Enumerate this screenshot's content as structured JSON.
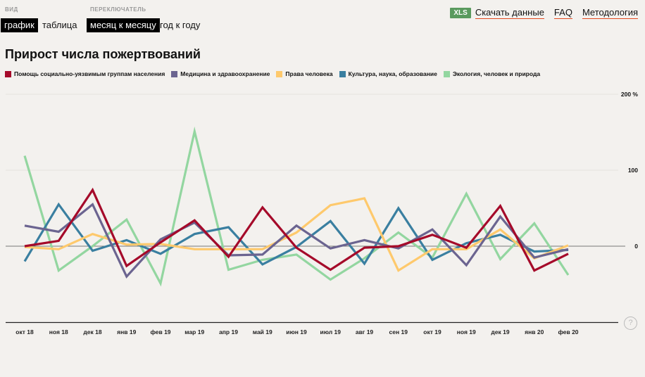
{
  "controls": {
    "view_label": "ВИД",
    "view_options": [
      "график",
      "таблица"
    ],
    "view_selected": 0,
    "switch_label": "ПЕРЕКЛЮЧАТЕЛЬ",
    "switch_options": [
      "месяц к месяцу",
      "год к году"
    ],
    "switch_selected": 0
  },
  "toplinks": {
    "xls_badge": "XLS",
    "download": "Скачать данные",
    "faq": "FAQ",
    "methodology": "Методология"
  },
  "help_icon": "?",
  "colors": {
    "background": "#f3f1ee",
    "link_underline": "#e2481f",
    "xls_badge": "#5a9a5e"
  },
  "chart_data": {
    "type": "line",
    "title": "Прирост числа пожертвований",
    "xlabel": "",
    "ylabel": "",
    "ylim": [
      -95,
      200
    ],
    "yticks": [
      {
        "value": 200,
        "label": "200 %"
      },
      {
        "value": 100,
        "label": "100"
      },
      {
        "value": 0,
        "label": "0"
      }
    ],
    "grid": true,
    "legend_position": "top-left",
    "categories": [
      "окт 18",
      "ноя 18",
      "дек 18",
      "янв 19",
      "фев 19",
      "мар 19",
      "апр 19",
      "май 19",
      "июн 19",
      "июл 19",
      "авг 19",
      "сен 19",
      "окт 19",
      "ноя 19",
      "дек 19",
      "янв 20",
      "фев 20"
    ],
    "series": [
      {
        "name": "Экология, человек и природа",
        "color": "#93d6a0",
        "values": [
          119,
          -32,
          0,
          35,
          -49,
          151,
          -31,
          -18,
          -11,
          -44,
          -16,
          18,
          -15,
          69,
          -17,
          30,
          -38
        ]
      },
      {
        "name": "Культура, наука, образование",
        "color": "#3a7fa0",
        "values": [
          -20,
          55,
          -6,
          8,
          -10,
          16,
          25,
          -24,
          -1,
          33,
          -23,
          50,
          -18,
          4,
          15,
          -7,
          -5
        ]
      },
      {
        "name": "Права человека",
        "color": "#fec96c",
        "values": [
          -1,
          -4,
          16,
          2,
          3,
          -4,
          -4,
          -4,
          18,
          54,
          63,
          -32,
          -4,
          -4,
          22,
          -16,
          1
        ]
      },
      {
        "name": "Медицина и здравоохранение",
        "color": "#6b6490",
        "values": [
          27,
          19,
          55,
          -40,
          9,
          31,
          -12,
          -11,
          27,
          -3,
          8,
          -3,
          22,
          -25,
          39,
          -15,
          -4
        ]
      },
      {
        "name": "Помощь социально-уязвимым группам населения",
        "color": "#a50a2a",
        "values": [
          0,
          7,
          74,
          -26,
          5,
          34,
          -14,
          51,
          -2,
          -31,
          -2,
          0,
          15,
          -2,
          53,
          -32,
          -10
        ]
      }
    ],
    "legend_order": [
      4,
      3,
      2,
      1,
      0
    ]
  }
}
